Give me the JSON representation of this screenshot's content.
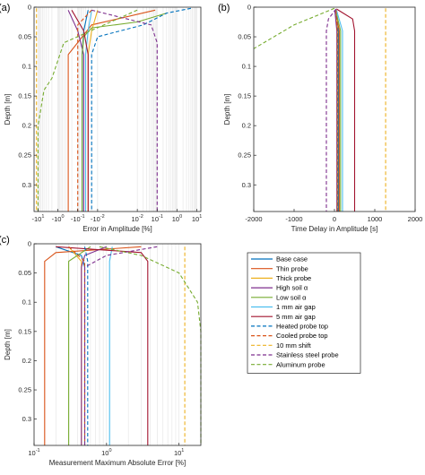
{
  "colors": {
    "base": "#0072BD",
    "thin": "#D95319",
    "thick": "#EDB120",
    "high": "#7E2F8E",
    "low": "#77AC30",
    "gap1": "#4DBEEE",
    "gap5": "#A2142F"
  },
  "legend": {
    "entries": [
      {
        "label": "Base case",
        "color": "#0072BD",
        "dash": false
      },
      {
        "label": "Thin probe",
        "color": "#D95319",
        "dash": false
      },
      {
        "label": "Thick probe",
        "color": "#EDB120",
        "dash": false
      },
      {
        "label": "High soil α",
        "color": "#7E2F8E",
        "dash": false
      },
      {
        "label": "Low soil α",
        "color": "#77AC30",
        "dash": false
      },
      {
        "label": "1 mm air gap",
        "color": "#4DBEEE",
        "dash": false
      },
      {
        "label": "5 mm air gap",
        "color": "#A2142F",
        "dash": false
      },
      {
        "label": "Heated probe top",
        "color": "#0072BD",
        "dash": true
      },
      {
        "label": "Cooled probe top",
        "color": "#D95319",
        "dash": true
      },
      {
        "label": "10 mm shift",
        "color": "#EDB120",
        "dash": true
      },
      {
        "label": "Stainless steel probe",
        "color": "#7E2F8E",
        "dash": true
      },
      {
        "label": "Aluminum probe",
        "color": "#77AC30",
        "dash": true
      }
    ]
  },
  "chart_data": [
    {
      "panel": "(a)",
      "type": "line",
      "xlabel": "Error in Amplitude [%]",
      "ylabel": "Depth [m]",
      "xscale": "symlog",
      "xticks": [
        -10,
        -1,
        -0.1,
        -0.01,
        0.01,
        0.1,
        1,
        10
      ],
      "xtick_labels": [
        "-10",
        "-10",
        "-10",
        "-10",
        "10",
        "10",
        "10",
        "10"
      ],
      "xtick_exps": [
        "1",
        "0",
        "-1",
        "-2",
        "-2",
        "-1",
        "0",
        "1"
      ],
      "yticks": [
        0,
        0.05,
        0.1,
        0.15,
        0.2,
        0.25,
        0.3
      ],
      "ytick_labels": [
        "0",
        "0.05",
        "0.1",
        "0.15",
        "0.2",
        "0.25",
        "0.3"
      ],
      "ylim": [
        0,
        0.345
      ],
      "grid": "vertical",
      "series": [
        {
          "key": "base",
          "dash": false,
          "x": [
            -0.03,
            -0.05,
            -0.06,
            -0.06
          ],
          "y": [
            0.005,
            0.04,
            0.08,
            0.345
          ]
        },
        {
          "key": "thin",
          "dash": false,
          "x": [
            0.08,
            -0.02,
            -0.3,
            -0.3
          ],
          "y": [
            0.005,
            0.03,
            0.08,
            0.345
          ]
        },
        {
          "key": "thick",
          "dash": false,
          "x": [
            -0.01,
            -0.02,
            -0.03,
            -0.03
          ],
          "y": [
            0.005,
            0.04,
            0.08,
            0.345
          ]
        },
        {
          "key": "high",
          "dash": false,
          "x": [
            -0.3,
            -0.1,
            -0.05,
            -0.05
          ],
          "y": [
            0.005,
            0.04,
            0.08,
            0.345
          ]
        },
        {
          "key": "low",
          "dash": false,
          "x": [
            0.3,
            0.01,
            -0.02,
            -0.05,
            -0.06,
            -0.06
          ],
          "y": [
            0.01,
            0.025,
            0.035,
            0.05,
            0.08,
            0.345
          ]
        },
        {
          "key": "gap1",
          "dash": false,
          "x": [
            -0.02,
            -0.03,
            -0.04,
            -0.04
          ],
          "y": [
            0.005,
            0.04,
            0.08,
            0.345
          ]
        },
        {
          "key": "gap5",
          "dash": false,
          "x": [
            -0.2,
            -0.05,
            -0.03,
            -0.03
          ],
          "y": [
            0.005,
            0.04,
            0.08,
            0.345
          ]
        },
        {
          "key": "base",
          "dash": true,
          "x": [
            5,
            0.3,
            0.02,
            -0.01,
            -0.02,
            -0.02
          ],
          "y": [
            0.002,
            0.01,
            0.03,
            0.05,
            0.08,
            0.345
          ]
        },
        {
          "key": "thin",
          "dash": true,
          "x": [
            -0.02,
            -0.1,
            -0.1,
            -0.1
          ],
          "y": [
            0.005,
            0.03,
            0.08,
            0.345
          ]
        },
        {
          "key": "thick",
          "dash": true,
          "x": [
            -12,
            -12,
            -12
          ],
          "y": [
            0.002,
            0.08,
            0.345
          ]
        },
        {
          "key": "high",
          "dash": true,
          "x": [
            -0.02,
            0.05,
            0.1,
            0.1
          ],
          "y": [
            0.005,
            0.03,
            0.06,
            0.345
          ]
        },
        {
          "key": "low",
          "dash": true,
          "x": [
            0.01,
            -0.5,
            -2,
            -5,
            -10,
            -10
          ],
          "y": [
            0.005,
            0.06,
            0.12,
            0.14,
            0.2,
            0.345
          ]
        }
      ]
    },
    {
      "panel": "(b)",
      "type": "line",
      "xlabel": "Time Delay in Amplitude [s]",
      "ylabel": "Depth [m]",
      "xticks": [
        -2000,
        -1000,
        0,
        1000,
        2000
      ],
      "xtick_labels": [
        "-2000",
        "-1000",
        "0",
        "1000",
        "2000"
      ],
      "xlim": [
        -2000,
        2000
      ],
      "yticks": [
        0,
        0.05,
        0.1,
        0.15,
        0.2,
        0.25,
        0.3
      ],
      "ytick_labels": [
        "0",
        "0.05",
        "0.1",
        "0.15",
        "0.2",
        "0.25",
        "0.3"
      ],
      "ylim": [
        0,
        0.345
      ],
      "series": [
        {
          "key": "base",
          "dash": false,
          "x": [
            30,
            100,
            100
          ],
          "y": [
            0.005,
            0.04,
            0.345
          ]
        },
        {
          "key": "thin",
          "dash": false,
          "x": [
            20,
            120,
            120
          ],
          "y": [
            0.005,
            0.04,
            0.345
          ]
        },
        {
          "key": "thick",
          "dash": false,
          "x": [
            40,
            80,
            80
          ],
          "y": [
            0.005,
            0.04,
            0.345
          ]
        },
        {
          "key": "high",
          "dash": false,
          "x": [
            10,
            60,
            60
          ],
          "y": [
            0.005,
            0.04,
            0.345
          ]
        },
        {
          "key": "low",
          "dash": false,
          "x": [
            30,
            150,
            150
          ],
          "y": [
            0.005,
            0.04,
            0.345
          ]
        },
        {
          "key": "gap1",
          "dash": false,
          "x": [
            50,
            200,
            200
          ],
          "y": [
            0.005,
            0.04,
            0.345
          ]
        },
        {
          "key": "gap5",
          "dash": false,
          "x": [
            50,
            450,
            500,
            500
          ],
          "y": [
            0.003,
            0.02,
            0.04,
            0.345
          ]
        },
        {
          "key": "base",
          "dash": true,
          "x": [
            40,
            80,
            80
          ],
          "y": [
            0.005,
            0.04,
            0.345
          ]
        },
        {
          "key": "thin",
          "dash": true,
          "x": [
            40,
            70,
            70
          ],
          "y": [
            0.005,
            0.04,
            0.345
          ]
        },
        {
          "key": "thick",
          "dash": true,
          "x": [
            1270,
            1270
          ],
          "y": [
            0.002,
            0.345
          ]
        },
        {
          "key": "high",
          "dash": true,
          "x": [
            40,
            -150,
            -200,
            -200
          ],
          "y": [
            0.003,
            0.02,
            0.04,
            0.345
          ]
        },
        {
          "key": "low",
          "dash": true,
          "x": [
            0,
            -1000,
            -2000
          ],
          "y": [
            0.002,
            0.03,
            0.07
          ]
        }
      ]
    },
    {
      "panel": "(c)",
      "type": "line",
      "xlabel": "Measurement Maximum Absolute Error [%]",
      "ylabel": "Depth [m]",
      "xscale": "log",
      "xlim": [
        0.1,
        20
      ],
      "xticks": [
        0.1,
        1,
        10
      ],
      "xtick_labels": [
        "10",
        "10",
        "10"
      ],
      "xtick_exps": [
        "-1",
        "0",
        "1"
      ],
      "yticks": [
        0,
        0.05,
        0.1,
        0.15,
        0.2,
        0.25,
        0.3
      ],
      "ytick_labels": [
        "0",
        "0.05",
        "0.1",
        "0.15",
        "0.2",
        "0.25",
        "0.3"
      ],
      "ylim": [
        0,
        0.345
      ],
      "grid": "vertical",
      "series": [
        {
          "key": "base",
          "dash": false,
          "x": [
            0.2,
            0.45,
            0.5,
            0.5
          ],
          "y": [
            0.005,
            0.02,
            0.04,
            0.345
          ]
        },
        {
          "key": "thin",
          "dash": false,
          "x": [
            3,
            0.2,
            0.14,
            0.14
          ],
          "y": [
            0.005,
            0.015,
            0.03,
            0.345
          ]
        },
        {
          "key": "thick",
          "dash": false,
          "x": [
            0.3,
            0.45,
            0.45
          ],
          "y": [
            0.005,
            0.03,
            0.345
          ]
        },
        {
          "key": "high",
          "dash": false,
          "x": [
            1,
            0.5,
            0.45,
            0.45
          ],
          "y": [
            0.005,
            0.02,
            0.04,
            0.345
          ]
        },
        {
          "key": "low",
          "dash": false,
          "x": [
            0.6,
            0.3,
            0.3,
            0.3
          ],
          "y": [
            0.005,
            0.03,
            0.06,
            0.345
          ]
        },
        {
          "key": "gap1",
          "dash": false,
          "x": [
            1.2,
            1.1,
            1.1
          ],
          "y": [
            0.005,
            0.03,
            0.345
          ]
        },
        {
          "key": "gap5",
          "dash": false,
          "x": [
            0.2,
            3,
            3.7,
            3.7
          ],
          "y": [
            0.005,
            0.015,
            0.03,
            0.345
          ]
        },
        {
          "key": "base",
          "dash": true,
          "x": [
            0.5,
            0.55,
            0.55
          ],
          "y": [
            0.005,
            0.03,
            0.345
          ]
        },
        {
          "key": "thin",
          "dash": true,
          "x": [
            0.3,
            0.5,
            0.5
          ],
          "y": [
            0.005,
            0.03,
            0.345
          ]
        },
        {
          "key": "thick",
          "dash": true,
          "x": [
            12,
            12
          ],
          "y": [
            0.005,
            0.345
          ]
        },
        {
          "key": "high",
          "dash": true,
          "x": [
            5,
            1,
            0.5,
            0.5
          ],
          "y": [
            0.005,
            0.02,
            0.04,
            0.345
          ]
        },
        {
          "key": "low",
          "dash": true,
          "x": [
            0.8,
            3,
            10,
            18,
            20,
            20
          ],
          "y": [
            0.005,
            0.02,
            0.05,
            0.1,
            0.15,
            0.345
          ]
        }
      ]
    }
  ]
}
